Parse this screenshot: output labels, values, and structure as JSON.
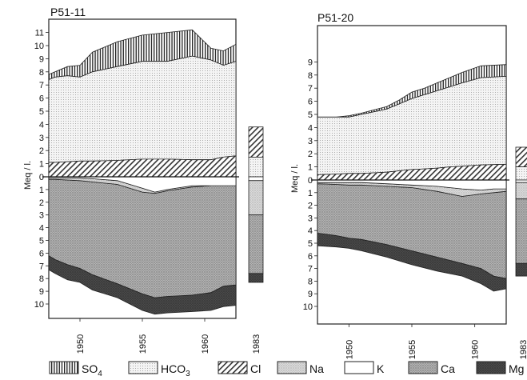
{
  "chart_data": [
    {
      "type": "area",
      "title": "P51-11",
      "ylabel": "Meq / l.",
      "x_ticks": [
        "1950",
        "1955",
        "1960"
      ],
      "bar_label": "1983",
      "y_ticks_up": [
        "0",
        "1",
        "2",
        "3",
        "4",
        "5",
        "6",
        "7",
        "8",
        "9",
        "10",
        "11"
      ],
      "y_ticks_down": [
        "1",
        "2",
        "3",
        "4",
        "5",
        "6",
        "7",
        "8",
        "9",
        "10"
      ],
      "ylim_up": [
        0,
        11.5
      ],
      "ylim_down": [
        0,
        11
      ],
      "xlim": [
        1947.5,
        1962.5
      ],
      "anions": {
        "x": [
          1947.5,
          1948.0,
          1949.0,
          1950.0,
          1951.0,
          1953.0,
          1955.0,
          1957.0,
          1959.0,
          1960.5,
          1961.5,
          1962.5
        ],
        "Cl": [
          1.1,
          1.1,
          1.15,
          1.2,
          1.2,
          1.25,
          1.35,
          1.35,
          1.3,
          1.3,
          1.5,
          1.6
        ],
        "HCO3": [
          7.4,
          7.6,
          7.7,
          7.6,
          8.0,
          8.4,
          8.8,
          8.8,
          9.2,
          8.9,
          8.5,
          8.8
        ],
        "SO4": [
          7.8,
          8.0,
          8.4,
          8.5,
          9.5,
          10.3,
          10.8,
          11.0,
          11.2,
          9.8,
          9.6,
          10.1
        ]
      },
      "cations": {
        "x": [
          1947.5,
          1948.0,
          1949.0,
          1950.0,
          1951.0,
          1953.0,
          1955.0,
          1956.0,
          1957.0,
          1959.0,
          1960.5,
          1961.5,
          1962.5
        ],
        "K": [
          0.1,
          0.1,
          0.1,
          0.1,
          0.15,
          0.3,
          0.9,
          1.2,
          1.0,
          0.7,
          0.7,
          0.7,
          0.7
        ],
        "Na": [
          0.2,
          0.2,
          0.25,
          0.3,
          0.4,
          0.6,
          1.2,
          1.3,
          1.1,
          0.8,
          0.7,
          0.7,
          0.7
        ],
        "Ca": [
          6.2,
          6.5,
          6.9,
          7.2,
          7.7,
          8.4,
          9.2,
          9.5,
          9.4,
          9.3,
          9.1,
          8.6,
          8.5
        ],
        "Mg": [
          7.3,
          7.6,
          8.1,
          8.3,
          8.9,
          9.5,
          10.5,
          10.8,
          10.7,
          10.6,
          10.5,
          10.2,
          10.1
        ]
      },
      "bar_1983": {
        "anions": {
          "Cl": 1.5,
          "HCO3": 0.0,
          "SO4": 3.8
        },
        "cations": {
          "K": 0.3,
          "Na": 3.0,
          "Ca": 7.6,
          "Mg": 8.3
        }
      }
    },
    {
      "type": "area",
      "title": "P51-20",
      "ylabel": "Meq / l.",
      "x_ticks": [
        "1950",
        "1955",
        "1960"
      ],
      "bar_label": "1983",
      "y_ticks_up": [
        "0",
        "1",
        "2",
        "3",
        "4",
        "5",
        "6",
        "7",
        "8",
        "9"
      ],
      "y_ticks_down": [
        "1",
        "2",
        "3",
        "4",
        "5",
        "6",
        "7",
        "8",
        "9",
        "10"
      ],
      "ylim_up": [
        0,
        9.5
      ],
      "ylim_down": [
        0,
        10.5
      ],
      "xlim": [
        1947.5,
        1962.5
      ],
      "anions": {
        "x": [
          1947.5,
          1949.0,
          1950.0,
          1951.0,
          1952.0,
          1953.0,
          1954.0,
          1955.0,
          1956.0,
          1957.0,
          1958.0,
          1959.0,
          1960.5,
          1962.5
        ],
        "Cl": [
          0.4,
          0.45,
          0.5,
          0.5,
          0.55,
          0.6,
          0.7,
          0.8,
          0.85,
          0.9,
          1.0,
          1.05,
          1.15,
          1.2
        ],
        "HCO3": [
          4.8,
          4.8,
          4.8,
          5.0,
          5.2,
          5.4,
          5.8,
          6.2,
          6.5,
          6.8,
          7.1,
          7.4,
          7.8,
          7.9
        ],
        "SO4": [
          4.8,
          4.8,
          4.9,
          5.1,
          5.35,
          5.6,
          6.1,
          6.7,
          7.0,
          7.4,
          7.8,
          8.2,
          8.7,
          8.8
        ]
      },
      "cations": {
        "x": [
          1947.5,
          1949.0,
          1950.0,
          1951.0,
          1953.0,
          1955.0,
          1957.0,
          1959.0,
          1960.5,
          1961.5,
          1962.5
        ],
        "K": [
          0.2,
          0.2,
          0.2,
          0.2,
          0.3,
          0.4,
          0.5,
          0.7,
          0.8,
          0.7,
          0.7
        ],
        "Na": [
          0.3,
          0.35,
          0.4,
          0.4,
          0.5,
          0.6,
          0.9,
          1.3,
          1.1,
          1.0,
          0.9
        ],
        "Ca": [
          4.2,
          4.4,
          4.6,
          4.7,
          5.1,
          5.6,
          6.1,
          6.6,
          7.0,
          7.6,
          7.8
        ],
        "Mg": [
          5.2,
          5.3,
          5.4,
          5.6,
          6.1,
          6.7,
          7.2,
          7.6,
          8.2,
          8.8,
          8.6
        ]
      },
      "bar_1983": {
        "anions": {
          "Cl": 1.0,
          "HCO3": 0.0,
          "SO4": 2.5
        },
        "cations": {
          "K": 0.2,
          "Na": 1.5,
          "Ca": 6.6,
          "Mg": 7.6
        }
      }
    }
  ],
  "legend": [
    {
      "key": "SO4",
      "pattern": "vertical-hatch",
      "label_main": "SO",
      "label_sub": "4"
    },
    {
      "key": "HCO3",
      "pattern": "fine-dots",
      "label_main": "HCO",
      "label_sub": "3"
    },
    {
      "key": "Cl",
      "pattern": "diagonal-hatch",
      "label_main": "Cl",
      "label_sub": ""
    },
    {
      "key": "Na",
      "pattern": "light-stipple",
      "label_main": "Na",
      "label_sub": ""
    },
    {
      "key": "K",
      "pattern": "blank",
      "label_main": "K",
      "label_sub": ""
    },
    {
      "key": "Ca",
      "pattern": "medium-stipple",
      "label_main": "Ca",
      "label_sub": ""
    },
    {
      "key": "Mg",
      "pattern": "dark-stipple",
      "label_main": "Mg",
      "label_sub": ""
    }
  ]
}
